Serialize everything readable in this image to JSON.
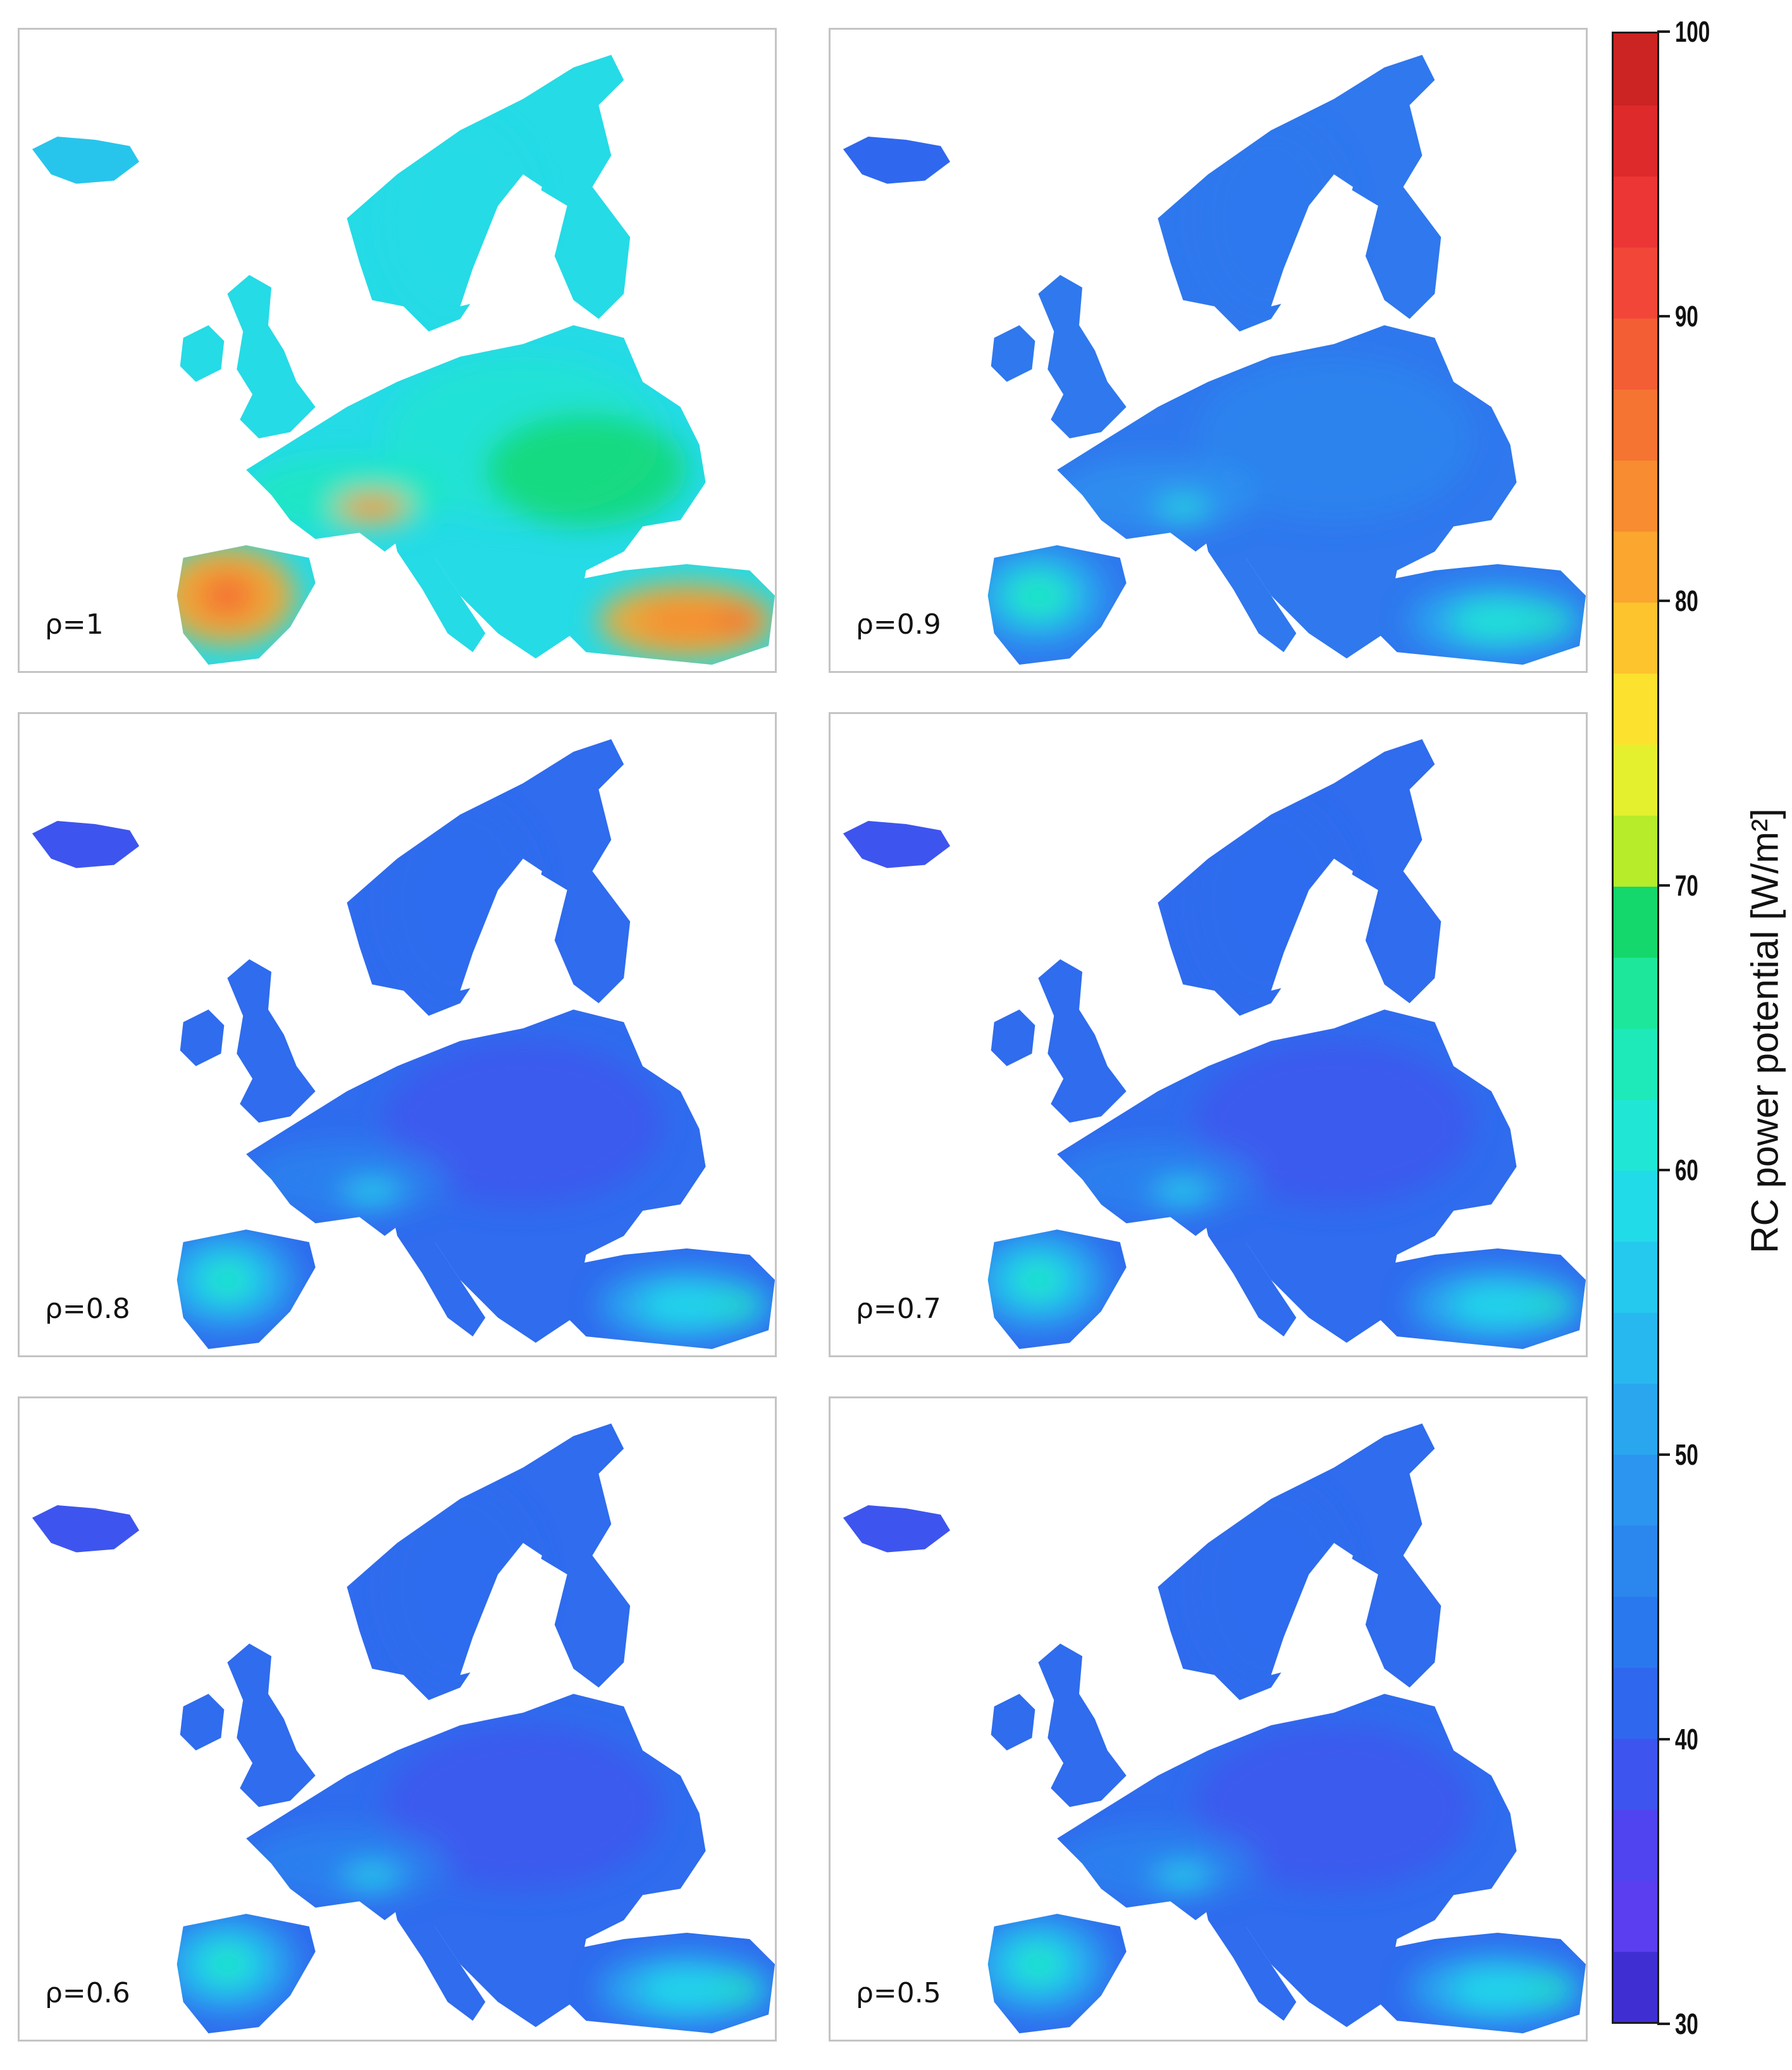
{
  "panels": [
    {
      "label": "ρ=1",
      "theme": "high"
    },
    {
      "label": "ρ=0.9",
      "theme": "mid"
    },
    {
      "label": "ρ=0.8",
      "theme": "low"
    },
    {
      "label": "ρ=0.7",
      "theme": "low"
    },
    {
      "label": "ρ=0.6",
      "theme": "low"
    },
    {
      "label": "ρ=0.5",
      "theme": "low"
    }
  ],
  "colorbar": {
    "title": "RC power potential [W/m²]",
    "min": 30,
    "max": 100,
    "ticks": [
      {
        "value": 30,
        "label": "30"
      },
      {
        "value": 40,
        "label": "40"
      },
      {
        "value": 50,
        "label": "50"
      },
      {
        "value": 60,
        "label": "60"
      },
      {
        "value": 70,
        "label": "70"
      },
      {
        "value": 80,
        "label": "80"
      },
      {
        "value": 90,
        "label": "90"
      },
      {
        "value": 100,
        "label": "100"
      }
    ],
    "colors": [
      "#3f2fd3",
      "#5a3ef0",
      "#5043f0",
      "#3d55ee",
      "#2f68ee",
      "#2a78ee",
      "#2b86ee",
      "#2c95ef",
      "#2aa6ef",
      "#27b8ef",
      "#25c9ee",
      "#22dbe9",
      "#20e7d5",
      "#1ee9b8",
      "#1ce79a",
      "#14d86b",
      "#b6ec2a",
      "#e4f02e",
      "#fde12f",
      "#fdc42e",
      "#fba62e",
      "#f88c30",
      "#f57432",
      "#f45e35",
      "#f24738",
      "#ec3535",
      "#de2a2a",
      "#cc2323"
    ]
  }
}
